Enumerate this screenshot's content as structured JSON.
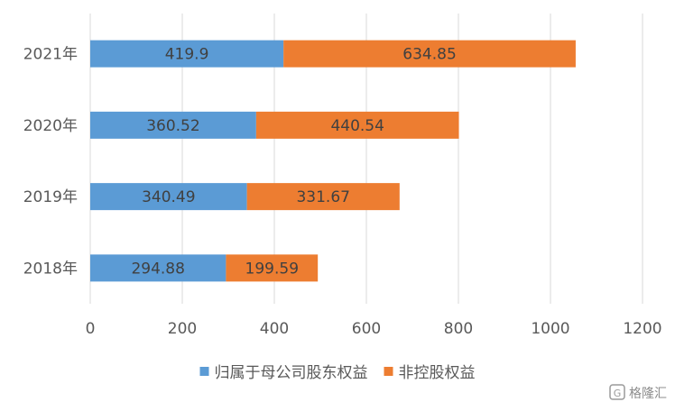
{
  "chart_data": {
    "type": "bar",
    "orientation": "horizontal",
    "stacked": true,
    "categories": [
      "2021年",
      "2020年",
      "2019年",
      "2018年"
    ],
    "series": [
      {
        "name": "归属于母公司股东权益",
        "color": "#5b9bd5",
        "values": [
          419.9,
          360.52,
          340.49,
          294.88
        ]
      },
      {
        "name": "非控股权益",
        "color": "#ed7d31",
        "values": [
          634.85,
          440.54,
          331.67,
          199.59
        ]
      }
    ],
    "data_labels": [
      [
        "419.9",
        "360.52",
        "340.49",
        "294.88"
      ],
      [
        "634.85",
        "440.54",
        "331.67",
        "199.59"
      ]
    ],
    "xlim": [
      0,
      1200
    ],
    "xticks": [
      "0",
      "200",
      "400",
      "600",
      "800",
      "1000",
      "1200"
    ],
    "grid": "vertical",
    "legend_position": "bottom"
  },
  "watermark": {
    "text": "格隆汇"
  }
}
